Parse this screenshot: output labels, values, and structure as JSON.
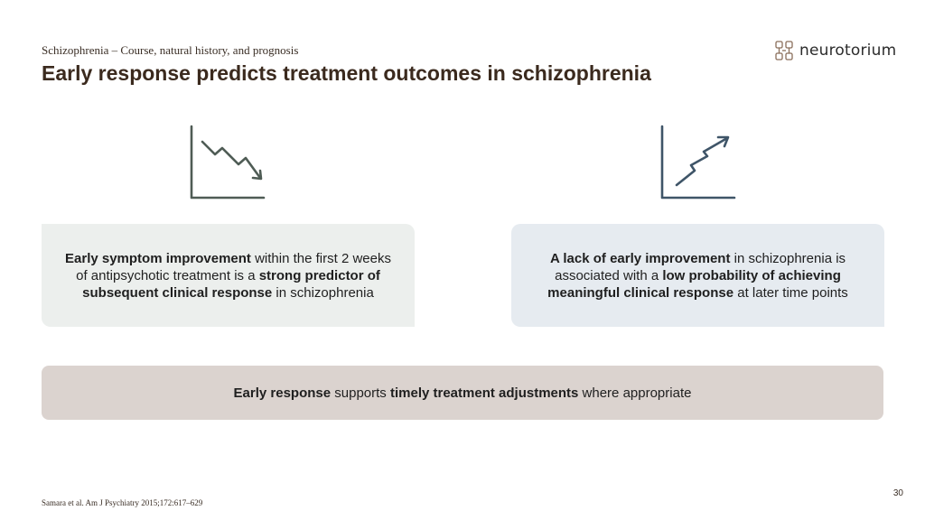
{
  "header": {
    "subtitle": "Schizophrenia – Course, natural history, and prognosis",
    "title": "Early response predicts treatment outcomes in schizophrenia",
    "logo_text": "neurotorium"
  },
  "icons": {
    "left": "declining-chart-icon",
    "right": "rising-chart-icon",
    "logo": "brain-logo-icon",
    "left_color": "#4f5c55",
    "right_color": "#3f5568"
  },
  "left_card": {
    "parts": [
      {
        "text": "Early symptom improvement",
        "bold": true
      },
      {
        "text": " within the first 2 weeks of antipsychotic treatment is a ",
        "bold": false
      },
      {
        "text": "strong predictor of subsequent clinical response",
        "bold": true
      },
      {
        "text": " in schizophrenia",
        "bold": false
      }
    ]
  },
  "right_card": {
    "parts": [
      {
        "text": "A lack of early improvement",
        "bold": true
      },
      {
        "text": " in schizophrenia is associated with a ",
        "bold": false
      },
      {
        "text": "low probability of achieving meaningful clinical response",
        "bold": true
      },
      {
        "text": " at later time points",
        "bold": false
      }
    ]
  },
  "banner": {
    "parts": [
      {
        "text": "Early response",
        "bold": true
      },
      {
        "text": " supports ",
        "bold": false
      },
      {
        "text": "timely treatment adjustments",
        "bold": true
      },
      {
        "text": " where appropriate",
        "bold": false
      }
    ]
  },
  "footer": {
    "reference": "Samara et al. Am J Psychiatry 2015;172:617–629",
    "page_number": "30"
  }
}
